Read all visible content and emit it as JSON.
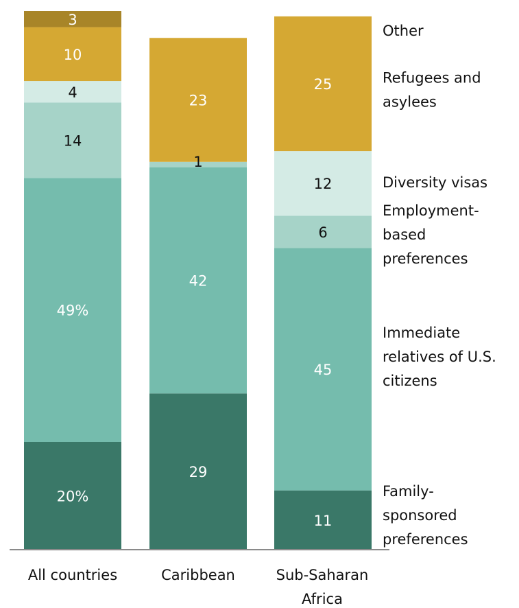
{
  "chart_data": {
    "type": "bar",
    "stacked": true,
    "categories": [
      "All countries",
      "Caribbean",
      "Sub-Saharan Africa"
    ],
    "category_label_lines": [
      [
        "All countries"
      ],
      [
        "Caribbean"
      ],
      [
        "Sub-Saharan",
        "Africa"
      ]
    ],
    "series": [
      {
        "name": "Family-sponsored preferences",
        "name_lines": [
          "Family-",
          "sponsored",
          "preferences"
        ],
        "values": [
          20,
          29,
          11
        ],
        "labels": [
          "20%",
          "29",
          "11"
        ],
        "color": "#3a7868",
        "label_color": "#ffffff"
      },
      {
        "name": "Immediate relatives of U.S. citizens",
        "name_lines": [
          "Immediate",
          "relatives of U.S.",
          "citizens"
        ],
        "values": [
          49,
          42,
          45
        ],
        "labels": [
          "49%",
          "42",
          "45"
        ],
        "color": "#75bcad",
        "label_color": "#ffffff"
      },
      {
        "name": "Employment-based preferences",
        "name_lines": [
          "Employment-",
          "based",
          "preferences"
        ],
        "values": [
          14,
          1,
          6
        ],
        "labels": [
          "14",
          "1",
          "6"
        ],
        "color": "#a6d3c8",
        "label_color": "#111111"
      },
      {
        "name": "Diversity visas",
        "name_lines": [
          "Diversity visas"
        ],
        "values": [
          4,
          0,
          12
        ],
        "labels": [
          "4",
          "",
          "12"
        ],
        "color": "#d4ebe5",
        "label_color": "#111111"
      },
      {
        "name": "Refugees and asylees",
        "name_lines": [
          "Refugees and",
          "asylees"
        ],
        "values": [
          10,
          23,
          25
        ],
        "labels": [
          "10",
          "23",
          "25"
        ],
        "color": "#d5a833",
        "label_color": "#ffffff"
      },
      {
        "name": "Other",
        "name_lines": [
          "Other"
        ],
        "values": [
          3,
          0,
          0
        ],
        "labels": [
          "3",
          "",
          ""
        ],
        "color": "#a88528",
        "label_color": "#ffffff"
      }
    ],
    "legend_position": "right",
    "grid": false
  }
}
